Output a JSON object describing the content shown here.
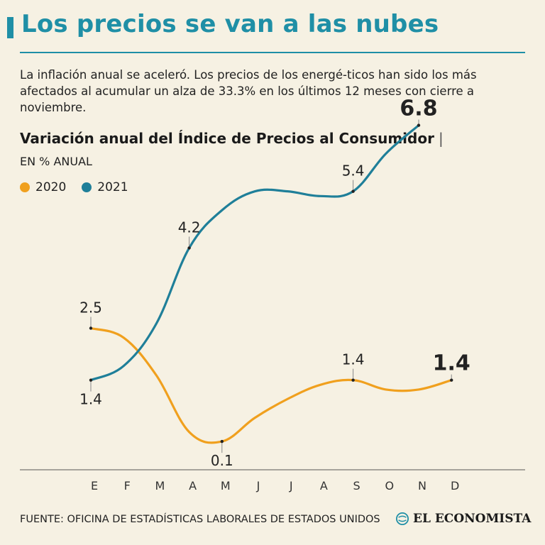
{
  "header": {
    "title": "Los precios se van a las nubes",
    "subtitle": "La inflación anual se aceleró. Los precios de los energé-ticos han sido los más afectados al acumular un alza de 33.3% en los últimos 12 meses con cierre a noviembre."
  },
  "colors": {
    "accent": "#1f8fa6",
    "series_2020": "#f0a01e",
    "series_2021": "#1f7f99",
    "axis": "#555555"
  },
  "chart_data": {
    "type": "line",
    "title": "Variación anual del Índice de Precios al Consumidor",
    "title_separator": "|",
    "units": "EN % ANUAL",
    "categories": [
      "E",
      "F",
      "M",
      "A",
      "M",
      "J",
      "J",
      "A",
      "S",
      "O",
      "N",
      "D"
    ],
    "ylim": [
      -0.5,
      7.5
    ],
    "grid": false,
    "legend": "top-left",
    "series": [
      {
        "name": "2020",
        "color": "#f0a01e",
        "values": [
          2.5,
          2.3,
          1.5,
          0.3,
          0.1,
          0.6,
          1.0,
          1.3,
          1.4,
          1.2,
          1.2,
          1.4
        ]
      },
      {
        "name": "2021",
        "color": "#1f7f99",
        "values": [
          1.4,
          1.7,
          2.6,
          4.2,
          5.0,
          5.4,
          5.4,
          5.3,
          5.4,
          6.2,
          6.8,
          null
        ]
      }
    ],
    "annotations": [
      {
        "series": 0,
        "index": 0,
        "text": "2.5",
        "position": "above",
        "bold": false
      },
      {
        "series": 0,
        "index": 4,
        "text": "0.1",
        "position": "below",
        "bold": false
      },
      {
        "series": 0,
        "index": 8,
        "text": "1.4",
        "position": "above",
        "bold": false
      },
      {
        "series": 0,
        "index": 11,
        "text": "1.4",
        "position": "above",
        "bold": true
      },
      {
        "series": 1,
        "index": 0,
        "text": "1.4",
        "position": "below",
        "bold": false
      },
      {
        "series": 1,
        "index": 3,
        "text": "4.2",
        "position": "above",
        "bold": false
      },
      {
        "series": 1,
        "index": 8,
        "text": "5.4",
        "position": "above",
        "bold": false
      },
      {
        "series": 1,
        "index": 10,
        "text": "6.8",
        "position": "above",
        "bold": true
      }
    ]
  },
  "footer": {
    "source": "FUENTE: OFICINA DE ESTADÍSTICAS LABORALES DE ESTADOS UNIDOS",
    "logo_text": "EL ECONOMISTA"
  }
}
